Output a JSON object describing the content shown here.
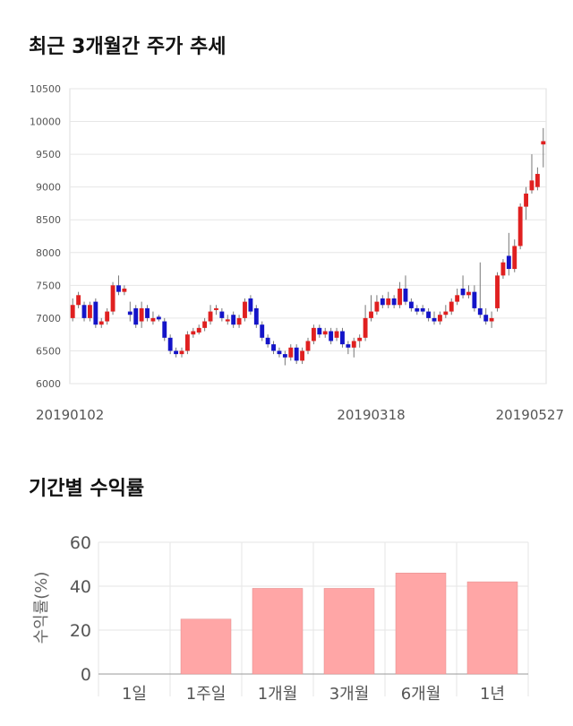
{
  "sections": {
    "price_title": "최근 3개월간 주가 추세",
    "return_title": "기간별 수익률"
  },
  "colors": {
    "up": "#e02020",
    "down": "#1414c8",
    "return_bar": "#ffa6a6",
    "grid": "#e6e6e6"
  },
  "chart_data": [
    {
      "type": "candlestick",
      "title": "최근 3개월간 주가 추세",
      "ylim": [
        6000,
        10500
      ],
      "y_ticks": [
        6000,
        6500,
        7000,
        7500,
        8000,
        8500,
        9000,
        9500,
        10000,
        10500
      ],
      "x_tick_labels": [
        "20190102",
        "20190318",
        "20190527"
      ],
      "x_tick_indices": [
        0,
        52,
        99
      ],
      "grid": true,
      "close": [
        7200,
        7350,
        7000,
        7200,
        6900,
        6950,
        7100,
        7500,
        7400,
        7450,
        7050,
        6900,
        7150,
        7000,
        7000,
        6980,
        6700,
        6500,
        6450,
        6500,
        6750,
        6800,
        6850,
        6950,
        7100,
        7150,
        7000,
        6980,
        6900,
        7000,
        7250,
        7100,
        6900,
        6700,
        6600,
        6500,
        6450,
        6400,
        6550,
        6350,
        6500,
        6650,
        6850,
        6750,
        6800,
        6650,
        6800,
        6600,
        6550,
        6650,
        6700,
        7000,
        7100,
        7250,
        7200,
        7300,
        7200,
        7450,
        7250,
        7150,
        7100,
        7100,
        7000,
        6950,
        7050,
        7100,
        7250,
        7350,
        7350,
        7400,
        7150,
        7050,
        6950,
        7000,
        7650,
        7850,
        7750,
        8100,
        8700,
        8900,
        9100,
        9200,
        9700
      ],
      "open": [
        7000,
        7200,
        7200,
        7000,
        7250,
        6900,
        6950,
        7100,
        7500,
        7400,
        7100,
        7150,
        6950,
        7150,
        6950,
        7020,
        6950,
        6700,
        6500,
        6450,
        6500,
        6750,
        6780,
        6850,
        6950,
        7150,
        7100,
        6950,
        7050,
        6900,
        7000,
        7300,
        7150,
        6900,
        6700,
        6600,
        6500,
        6450,
        6400,
        6550,
        6350,
        6500,
        6650,
        6850,
        6750,
        6800,
        6700,
        6800,
        6600,
        6550,
        6650,
        6700,
        7000,
        7100,
        7300,
        7200,
        7300,
        7200,
        7450,
        7250,
        7150,
        7150,
        7100,
        7000,
        6950,
        7050,
        7100,
        7250,
        7450,
        7350,
        7400,
        7150,
        7050,
        6950,
        7150,
        7650,
        7950,
        7750,
        8100,
        8700,
        8950,
        9000,
        9650
      ],
      "high": [
        7300,
        7400,
        7250,
        7250,
        7300,
        7000,
        7150,
        7550,
        7650,
        7500,
        7250,
        7200,
        7250,
        7200,
        7100,
        7050,
        7000,
        6750,
        6550,
        6550,
        6800,
        6850,
        6900,
        7000,
        7200,
        7200,
        7150,
        7050,
        7100,
        7050,
        7300,
        7350,
        7200,
        6950,
        6750,
        6650,
        6550,
        6500,
        6600,
        6600,
        6550,
        6700,
        6900,
        6900,
        6850,
        6850,
        6850,
        6850,
        6650,
        6700,
        6750,
        7200,
        7350,
        7350,
        7350,
        7400,
        7350,
        7550,
        7650,
        7300,
        7200,
        7200,
        7150,
        7100,
        7100,
        7200,
        7300,
        7450,
        7650,
        7500,
        7500,
        7850,
        7150,
        7100,
        7700,
        7900,
        8300,
        8200,
        8750,
        9000,
        9500,
        9300,
        9900
      ],
      "low": [
        6950,
        7150,
        6950,
        6950,
        6850,
        6850,
        6900,
        7050,
        7350,
        7350,
        6950,
        6850,
        6850,
        6950,
        6900,
        6950,
        6650,
        6450,
        6400,
        6400,
        6450,
        6700,
        6750,
        6800,
        6900,
        7050,
        6950,
        6900,
        6850,
        6850,
        6950,
        7050,
        6850,
        6650,
        6550,
        6450,
        6400,
        6280,
        6350,
        6300,
        6300,
        6450,
        6600,
        6700,
        6700,
        6600,
        6650,
        6550,
        6450,
        6400,
        6550,
        6650,
        6950,
        7050,
        7150,
        7150,
        7150,
        7150,
        7200,
        7100,
        7050,
        7050,
        6950,
        6900,
        6900,
        7000,
        7050,
        7200,
        7300,
        7300,
        7100,
        7000,
        6900,
        6850,
        7100,
        7600,
        7650,
        7700,
        8050,
        8500,
        8900,
        8950,
        9300
      ]
    },
    {
      "type": "bar",
      "title": "기간별 수익률",
      "categories": [
        "1일",
        "1주일",
        "1개월",
        "3개월",
        "6개월",
        "1년"
      ],
      "values": [
        0,
        25,
        39,
        39,
        46,
        42
      ],
      "ylabel": "수익률(%)",
      "ylim": [
        0,
        60
      ],
      "y_ticks": [
        0,
        20,
        40,
        60
      ],
      "grid": true
    }
  ]
}
